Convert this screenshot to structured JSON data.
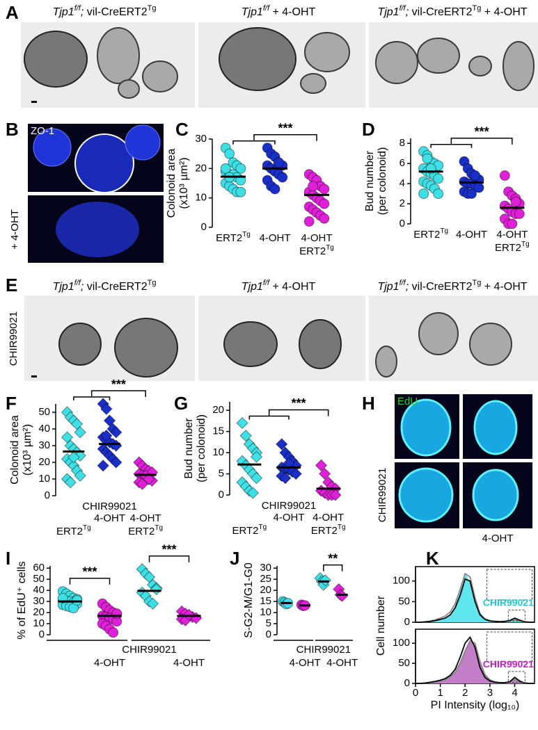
{
  "panel_labels": [
    "A",
    "B",
    "C",
    "D",
    "E",
    "F",
    "G",
    "H",
    "I",
    "J",
    "K"
  ],
  "image_panels": {
    "A": {
      "captions": [
        [
          {
            "text": "Tjp1",
            "italic": true
          },
          {
            "text": "f/f",
            "italic": true,
            "sup": true
          },
          {
            "text": ";",
            "italic": true
          },
          {
            "text": " vil-CreERT2"
          },
          {
            "text": "Tg",
            "sup": true
          }
        ],
        [
          {
            "text": "Tjp1",
            "italic": true
          },
          {
            "text": "f/f",
            "italic": true,
            "sup": true
          },
          {
            "text": " + 4-OHT"
          }
        ],
        [
          {
            "text": "Tjp1",
            "italic": true
          },
          {
            "text": "f/f",
            "italic": true,
            "sup": true
          },
          {
            "text": ";",
            "italic": true
          },
          {
            "text": " vil-CreERT2"
          },
          {
            "text": "Tg",
            "sup": true
          },
          {
            "text": " + 4-OHT"
          }
        ]
      ]
    },
    "B": {
      "top_label": "ZO-1",
      "side_label": "+ 4-OHT"
    },
    "E": {
      "captions": [
        [
          {
            "text": "Tjp1",
            "italic": true
          },
          {
            "text": "f/f",
            "italic": true,
            "sup": true
          },
          {
            "text": ";",
            "italic": true
          },
          {
            "text": " vil-CreERT2"
          },
          {
            "text": "Tg",
            "sup": true
          }
        ],
        [
          {
            "text": "Tjp1",
            "italic": true
          },
          {
            "text": "f/f",
            "italic": true,
            "sup": true
          },
          {
            "text": " + 4-OHT"
          }
        ],
        [
          {
            "text": "Tjp1",
            "italic": true
          },
          {
            "text": "f/f",
            "italic": true,
            "sup": true
          },
          {
            "text": ";",
            "italic": true
          },
          {
            "text": " vil-CreERT2"
          },
          {
            "text": "Tg",
            "sup": true
          },
          {
            "text": " + 4-OHT"
          }
        ]
      ],
      "side_label": "CHIR99021"
    },
    "H": {
      "top_label": "EdU",
      "side_label": "CHIR99021",
      "bottom_label": "4-OHT"
    }
  },
  "chart_data": [
    {
      "type": "dotplot",
      "ylabel": [
        "Colonoid area",
        "(x10³ µm²)"
      ],
      "ylim": [
        0,
        30
      ],
      "yticks": [
        0,
        10,
        20,
        30
      ],
      "groups": [
        {
          "color": "#3ee0e6",
          "marker": "circle",
          "values": [
            27,
            25,
            22,
            21,
            20,
            19,
            18,
            18,
            17,
            16,
            15,
            14,
            13,
            12,
            12,
            20,
            17
          ],
          "mean": 17.2
        },
        {
          "color": "#1a2fc8",
          "marker": "circle",
          "values": [
            27,
            25,
            24,
            22,
            21,
            21,
            20,
            19,
            18,
            17,
            16,
            14,
            13,
            22
          ],
          "mean": 20
        },
        {
          "color": "#e020d8",
          "marker": "circle",
          "values": [
            18,
            17,
            16,
            14,
            13,
            12,
            11,
            10,
            9,
            8,
            7,
            6,
            5,
            4,
            3,
            2,
            14
          ],
          "mean": 11
        }
      ],
      "x_label_rows": [
        {
          "labels": [
            "ERT2",
            "4-OHT",
            "4-OHT"
          ],
          "sup": [
            "Tg",
            null,
            null
          ]
        },
        {
          "labels": [
            null,
            null,
            "ERT2"
          ],
          "sup": [
            null,
            null,
            "Tg"
          ]
        }
      ],
      "comparisons": [
        {
          "label": "***",
          "between": [
            [
              0,
              1
            ],
            [
              2
            ]
          ]
        }
      ]
    },
    {
      "type": "dotplot",
      "ylabel": [
        "Bud number",
        "(per colonoid)"
      ],
      "ylim": [
        0,
        8.5
      ],
      "yticks": [
        0,
        2,
        4,
        6,
        8
      ],
      "groups": [
        {
          "color": "#3ee0e6",
          "marker": "circle",
          "values": [
            7.2,
            6.8,
            6.2,
            6,
            5.8,
            5.5,
            5.2,
            5,
            4.8,
            4.5,
            4.2,
            4,
            3.8,
            3.5,
            3,
            3,
            6.5,
            5.5
          ],
          "mean": 5.2
        },
        {
          "color": "#1a2fc8",
          "marker": "circle",
          "values": [
            6.2,
            5.5,
            5,
            4.6,
            4.4,
            4.2,
            4,
            4,
            3.8,
            3.6,
            3.2,
            3,
            3,
            4.8
          ],
          "mean": 4.1
        },
        {
          "color": "#e020d8",
          "marker": "circle",
          "values": [
            4.8,
            3.2,
            2.8,
            2.5,
            2,
            1.8,
            1.5,
            1.2,
            1,
            1,
            0.5,
            0,
            0,
            2.2
          ],
          "mean": 1.6
        }
      ],
      "x_label_rows": [
        {
          "labels": [
            "ERT2",
            "4-OHT",
            "4-OHT"
          ],
          "sup": [
            "Tg",
            null,
            null
          ]
        },
        {
          "labels": [
            null,
            null,
            "ERT2"
          ],
          "sup": [
            null,
            null,
            "Tg"
          ]
        }
      ],
      "comparisons": [
        {
          "label": "***",
          "between": [
            [
              0,
              1
            ],
            [
              2
            ]
          ]
        }
      ]
    },
    {
      "type": "dotplot",
      "ylabel": [
        "Colonoid area",
        "(x10³ µm²)"
      ],
      "ylim": [
        0,
        55
      ],
      "yticks": [
        0,
        10,
        20,
        30,
        40,
        50
      ],
      "groups": [
        {
          "color": "#3ee0e6",
          "marker": "diamond",
          "values": [
            50,
            47,
            45,
            43,
            38,
            35,
            30,
            28,
            26,
            24,
            22,
            20,
            18,
            15,
            12,
            10,
            8,
            23
          ],
          "mean": 26.5
        },
        {
          "color": "#1a2fc8",
          "marker": "diamond",
          "values": [
            55,
            52,
            45,
            40,
            38,
            35,
            33,
            32,
            31,
            30,
            28,
            26,
            24,
            22,
            20,
            18,
            36
          ],
          "mean": 31
        },
        {
          "color": "#e020d8",
          "marker": "diamond",
          "values": [
            20,
            18,
            16,
            15,
            14,
            13,
            12,
            11,
            10,
            9,
            8,
            7,
            12,
            10
          ],
          "mean": 12.5
        }
      ],
      "center_label": "CHIR99021",
      "x_label_rows": [
        {
          "labels": [
            null,
            "4-OHT",
            "4-OHT"
          ],
          "sup": [
            null,
            null,
            null
          ]
        },
        {
          "labels": [
            "ERT2",
            null,
            "ERT2"
          ],
          "sup": [
            "Tg",
            null,
            "Tg"
          ]
        }
      ],
      "comparisons": [
        {
          "label": "***",
          "between": [
            [
              0,
              1
            ],
            [
              2
            ]
          ]
        }
      ]
    },
    {
      "type": "dotplot",
      "ylabel": [
        "Bud number",
        "(per colonoid)"
      ],
      "ylim": [
        0,
        22
      ],
      "yticks": [
        0,
        5,
        10,
        15,
        20
      ],
      "groups": [
        {
          "color": "#3ee0e6",
          "marker": "diamond",
          "values": [
            17,
            14,
            12,
            11,
            10,
            8,
            7,
            6,
            5,
            4,
            3,
            2,
            1,
            0.5,
            9
          ],
          "mean": 7.2
        },
        {
          "color": "#1a2fc8",
          "marker": "diamond",
          "values": [
            12,
            10,
            9,
            8,
            7,
            6.5,
            6,
            6,
            5.5,
            5,
            4.5,
            4,
            7.5
          ],
          "mean": 6.5
        },
        {
          "color": "#e020d8",
          "marker": "diamond",
          "values": [
            7,
            5,
            3,
            2,
            1.5,
            1,
            0.5,
            0,
            0,
            0
          ],
          "mean": 1.5
        }
      ],
      "center_label": "CHIR99021",
      "x_label_rows": [
        {
          "labels": [
            null,
            "4-OHT",
            "4-OHT"
          ],
          "sup": [
            null,
            null,
            null
          ]
        },
        {
          "labels": [
            "ERT2",
            null,
            "ERT2"
          ],
          "sup": [
            "Tg",
            null,
            "Tg"
          ]
        }
      ],
      "comparisons": [
        {
          "label": "***",
          "between": [
            [
              0,
              1
            ],
            [
              2
            ]
          ]
        }
      ]
    },
    {
      "type": "dotplot",
      "ylabel": [
        "% of EdU⁺ cells"
      ],
      "ylim": [
        0,
        62
      ],
      "yticks": [
        0,
        10,
        20,
        30,
        40,
        50,
        60
      ],
      "paired": true,
      "groups": [
        {
          "color": "#3ee0e6",
          "marker": "circle",
          "values": [
            39,
            37,
            35,
            33,
            32,
            31,
            30,
            30,
            29,
            28,
            27,
            26,
            25,
            24,
            31,
            33
          ],
          "mean": 30
        },
        {
          "color": "#e020d8",
          "marker": "circle",
          "values": [
            28,
            25,
            22,
            20,
            18,
            17,
            16,
            15,
            14,
            12,
            10,
            8,
            5,
            2,
            19
          ],
          "mean": 17
        },
        {
          "color": "#3ee0e6",
          "marker": "diamond",
          "values": [
            59,
            55,
            52,
            45,
            42,
            38,
            35,
            30,
            28,
            41
          ],
          "mean": 39.5
        },
        {
          "color": "#e020d8",
          "marker": "diamond",
          "values": [
            21,
            19,
            17,
            16,
            15,
            14,
            13,
            18
          ],
          "mean": 17
        }
      ],
      "x_label_rows": [
        {
          "labels": [
            null,
            null,
            "CHIR99021",
            null
          ],
          "sup": [
            null,
            null,
            null,
            null
          ]
        },
        {
          "labels": [
            null,
            "4-OHT",
            null,
            "4-OHT"
          ],
          "sup": [
            null,
            null,
            null,
            null
          ]
        }
      ],
      "comparisons": [
        {
          "label": "***",
          "between": [
            [
              0
            ],
            [
              1
            ]
          ]
        },
        {
          "label": "***",
          "between": [
            [
              2
            ],
            [
              3
            ]
          ]
        }
      ]
    },
    {
      "type": "dotplot",
      "ylabel": [
        "S-G2-M/G1-G0"
      ],
      "ylim": [
        0,
        31
      ],
      "yticks": [
        0,
        5,
        10,
        15,
        20,
        25,
        30
      ],
      "paired": true,
      "groups": [
        {
          "color": "#3ee0e6",
          "marker": "circle",
          "values": [
            15,
            14.5,
            13.8,
            14.2
          ],
          "mean": 14.3
        },
        {
          "color": "#e020d8",
          "marker": "circle",
          "values": [
            13.5,
            13,
            13.2
          ],
          "mean": 13.2
        },
        {
          "color": "#3ee0e6",
          "marker": "diamond",
          "values": [
            25.5,
            24,
            22.5,
            24.5
          ],
          "mean": 24
        },
        {
          "color": "#e020d8",
          "marker": "diamond",
          "values": [
            20.5,
            18,
            17.5
          ],
          "mean": 18
        }
      ],
      "x_label_rows": [
        {
          "labels": [
            null,
            null,
            "CHIR99021",
            null
          ],
          "sup": [
            null,
            null,
            null,
            null
          ]
        },
        {
          "labels": [
            null,
            "4-OHT",
            null,
            "4-OHT"
          ],
          "sup": [
            null,
            null,
            null,
            null
          ]
        }
      ],
      "comparisons": [
        {
          "label": "**",
          "between": [
            [
              2
            ],
            [
              3
            ]
          ]
        }
      ]
    },
    {
      "type": "area",
      "ylabel": [
        "Cell number"
      ],
      "xlim": [
        0,
        4.8
      ],
      "ylim": [
        0,
        135
      ],
      "yticks": [
        0,
        50,
        100
      ],
      "x": [
        0,
        0.2,
        0.4,
        0.6,
        0.8,
        1,
        1.2,
        1.4,
        1.6,
        1.8,
        2,
        2.2,
        2.4,
        2.6,
        2.8,
        3,
        3.2,
        3.4,
        3.6,
        3.8,
        4,
        4.2,
        4.4,
        4.6,
        4.8
      ],
      "series": [
        {
          "color": "#5fe6ee",
          "fill": true,
          "values": [
            0,
            0,
            1,
            3,
            5,
            8,
            12,
            20,
            40,
            75,
            120,
            95,
            55,
            25,
            10,
            5,
            3,
            2,
            2,
            3,
            8,
            4,
            1,
            0,
            0
          ]
        },
        {
          "color": "#888888",
          "fill": false,
          "values": [
            0,
            0,
            1,
            3,
            6,
            10,
            15,
            25,
            45,
            80,
            118,
            110,
            60,
            20,
            8,
            4,
            2,
            2,
            2,
            3,
            6,
            3,
            1,
            0,
            0
          ]
        },
        {
          "color": "#000000",
          "fill": false,
          "values": [
            0,
            0,
            1,
            2,
            4,
            7,
            10,
            18,
            35,
            65,
            105,
            100,
            50,
            18,
            7,
            3,
            2,
            1,
            2,
            4,
            10,
            5,
            1,
            0,
            0
          ]
        }
      ],
      "annotation": {
        "text": "CHIR99021",
        "color": "#22c8d0"
      }
    },
    {
      "type": "area",
      "xlabel": "PI Intensity (log₁₀)",
      "xlim": [
        0,
        4.8
      ],
      "ylim": [
        0,
        135
      ],
      "yticks": [
        0,
        50,
        100
      ],
      "xticks": [
        0,
        1,
        2,
        3,
        4
      ],
      "x": [
        0,
        0.2,
        0.4,
        0.6,
        0.8,
        1,
        1.2,
        1.4,
        1.6,
        1.8,
        2,
        2.2,
        2.4,
        2.6,
        2.8,
        3,
        3.2,
        3.4,
        3.6,
        3.8,
        4,
        4.2,
        4.4,
        4.6,
        4.8
      ],
      "series": [
        {
          "color": "#c27ec6",
          "fill": true,
          "values": [
            0,
            0,
            1,
            2,
            4,
            6,
            10,
            18,
            30,
            55,
            85,
            110,
            95,
            50,
            20,
            8,
            4,
            2,
            2,
            3,
            12,
            5,
            1,
            0,
            0
          ]
        },
        {
          "color": "#888888",
          "fill": false,
          "values": [
            0,
            0,
            1,
            2,
            4,
            6,
            9,
            16,
            28,
            50,
            80,
            105,
            100,
            55,
            22,
            9,
            4,
            2,
            2,
            3,
            10,
            4,
            1,
            0,
            0
          ]
        },
        {
          "color": "#000000",
          "fill": false,
          "values": [
            0,
            0,
            1,
            3,
            5,
            8,
            12,
            20,
            35,
            65,
            100,
            115,
            90,
            40,
            15,
            6,
            3,
            2,
            2,
            4,
            15,
            6,
            1,
            0,
            0
          ]
        }
      ],
      "annotation": {
        "text": "CHIR99021",
        "color": "#c020c0"
      }
    }
  ]
}
